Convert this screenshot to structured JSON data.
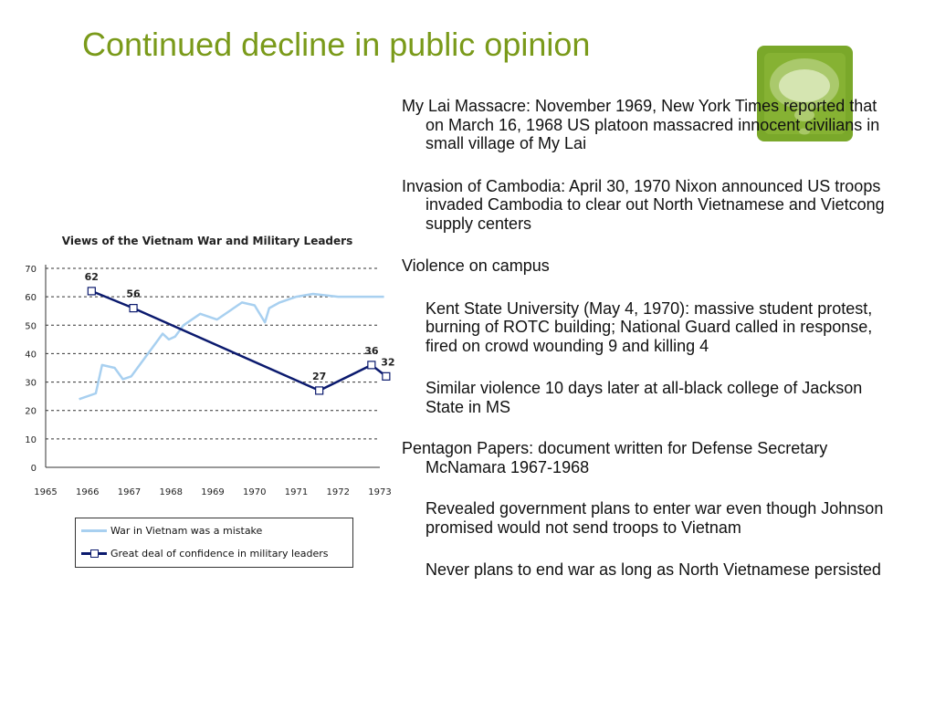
{
  "slide": {
    "title": "Continued decline in public opinion",
    "logo_icon": "speech-bubble-icon"
  },
  "bullets": [
    {
      "level": 1,
      "text": "My Lai Massacre: November 1969, New York Times reported that on March 16, 1968 US platoon massacred innocent civilians in small village of My Lai"
    },
    {
      "level": 1,
      "text": "Invasion of Cambodia: April 30, 1970 Nixon announced US troops invaded Cambodia to clear out North Vietnamese and Vietcong supply centers"
    },
    {
      "level": 1,
      "text": "Violence on campus"
    },
    {
      "level": 2,
      "text": "Kent State University (May 4, 1970): massive student protest, burning of ROTC building; National Guard called in response, fired on crowd wounding 9 and killing 4"
    },
    {
      "level": 2,
      "text": "Similar violence 10 days later at all-black college of Jackson State in MS"
    },
    {
      "level": 1,
      "text": "Pentagon Papers: document written for Defense Secretary McNamara 1967-1968"
    },
    {
      "level": 2,
      "text": "Revealed government plans to enter war even though Johnson promised would not send troops to Vietnam"
    },
    {
      "level": 2,
      "text": "Never plans to end war as long as North Vietnamese persisted"
    }
  ],
  "chart_data": {
    "type": "line",
    "title": "Views of the Vietnam War and Military Leaders",
    "xlabel": "",
    "ylabel": "",
    "xlim": [
      1965,
      1973
    ],
    "ylim": [
      0,
      70
    ],
    "x_ticks": [
      1965,
      1966,
      1967,
      1968,
      1969,
      1970,
      1971,
      1972,
      1973
    ],
    "y_ticks": [
      0,
      10,
      20,
      30,
      40,
      50,
      60,
      70
    ],
    "grid": "horizontal-dashed",
    "legend_position": "bottom",
    "series": [
      {
        "name": "War in Vietnam was a mistake",
        "color": "#a8d0f0",
        "markers": false,
        "x": [
          1965.8,
          1966.2,
          1966.35,
          1966.65,
          1966.85,
          1967.05,
          1967.5,
          1967.8,
          1967.95,
          1968.1,
          1968.3,
          1968.7,
          1969.1,
          1969.7,
          1970.0,
          1970.25,
          1970.35,
          1970.6,
          1971.0,
          1971.4,
          1972.0,
          1972.6,
          1973.1
        ],
        "values": [
          24,
          26,
          36,
          35,
          31,
          32,
          41,
          47,
          45,
          46,
          50,
          54,
          52,
          58,
          57,
          51,
          56,
          58,
          60,
          61,
          60,
          60,
          60
        ]
      },
      {
        "name": "Great deal of confidence in military leaders",
        "color": "#0b1a6e",
        "markers": true,
        "x": [
          1966.1,
          1967.1,
          1971.55,
          1972.8,
          1973.15
        ],
        "values": [
          62,
          56,
          27,
          36,
          32
        ],
        "labels": [
          "62",
          "56",
          "27",
          "36",
          "32"
        ]
      }
    ]
  }
}
